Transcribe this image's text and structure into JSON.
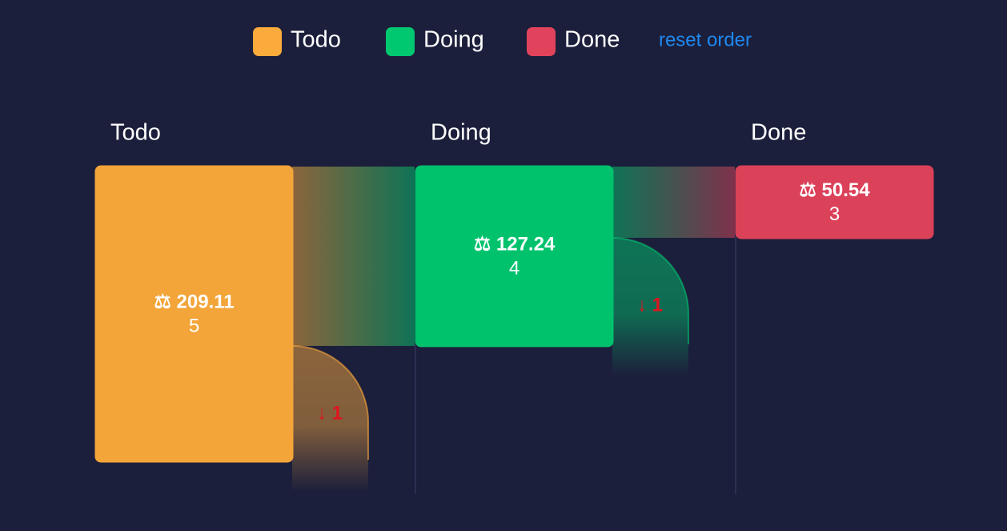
{
  "chart_data": {
    "type": "funnel",
    "categories": [
      "Todo",
      "Doing",
      "Done"
    ],
    "colors": [
      "#fbaa3c",
      "#00c870",
      "#e2435c"
    ],
    "values": [
      209.11,
      127.24,
      50.54
    ],
    "value_labels": [
      "⚖ 209.11",
      "⚖ 127.24",
      "⚖ 50.54"
    ],
    "counts": [
      5,
      4,
      3
    ],
    "dropoffs": [
      1,
      1
    ],
    "dropoff_labels": [
      "↓ 1",
      "↓ 1"
    ],
    "reset_label": "reset order"
  }
}
